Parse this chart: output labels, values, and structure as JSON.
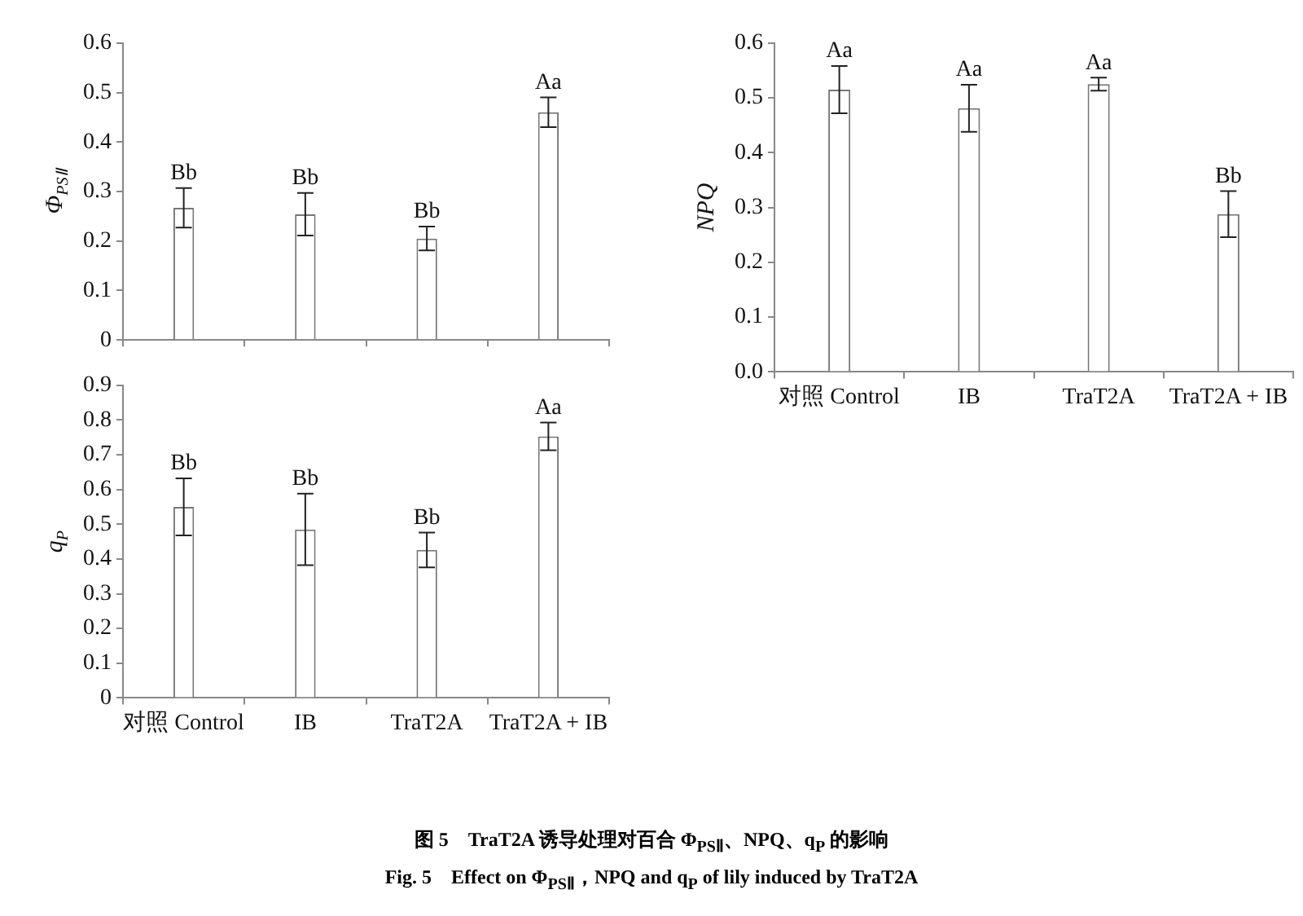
{
  "chart_data": [
    {
      "type": "bar",
      "ylabel": "Φ$_{PSⅡ}$",
      "categories": [
        "对照 Control",
        "IB",
        "TraT2A",
        "TraT2A + IB"
      ],
      "values": [
        0.267,
        0.254,
        0.205,
        0.46
      ],
      "errors": [
        0.04,
        0.043,
        0.024,
        0.03
      ],
      "color": "#ffffff",
      "ylim": [
        0,
        0.6
      ],
      "yticks": [
        0,
        0.1,
        0.2,
        0.3,
        0.4,
        0.5,
        0.6
      ],
      "tick_labels": "y",
      "grid": false,
      "legend": false,
      "annotations": [
        {
          "text": "Bb",
          "x": "对照 Control",
          "y": 0.307
        },
        {
          "text": "Bb",
          "x": "IB",
          "y": 0.297
        },
        {
          "text": "Bb",
          "x": "TraT2A",
          "y": 0.229
        },
        {
          "text": "Aa",
          "x": "TraT2A + IB",
          "y": 0.49
        }
      ]
    },
    {
      "type": "bar",
      "ylabel": "NPQ",
      "categories": [
        "对照 Control",
        "IB",
        "TraT2A",
        "TraT2A + IB"
      ],
      "values": [
        0.515,
        0.481,
        0.525,
        0.288
      ],
      "errors": [
        0.043,
        0.043,
        0.012,
        0.042
      ],
      "color": "#ffffff",
      "ylim": [
        0,
        0.6
      ],
      "yticks": [
        {
          "value": 0,
          "label": "0.0"
        },
        0.1,
        0.2,
        0.3,
        0.4,
        0.5,
        0.6
      ],
      "grid": false,
      "legend": false,
      "annotations": [
        {
          "text": "Aa",
          "x": "对照 Control",
          "y": 0.558
        },
        {
          "text": "Aa",
          "x": "IB",
          "y": 0.524
        },
        {
          "text": "Aa",
          "x": "TraT2A",
          "y": 0.537
        },
        {
          "text": "Bb",
          "x": "TraT2A + IB",
          "y": 0.33
        }
      ]
    },
    {
      "type": "bar",
      "ylabel": "q$_{P}$",
      "categories": [
        "对照 Control",
        "IB",
        "TraT2A",
        "TraT2A + IB"
      ],
      "values": [
        0.55,
        0.485,
        0.426,
        0.753
      ],
      "errors": [
        0.082,
        0.103,
        0.05,
        0.04
      ],
      "color": "#ffffff",
      "ylim": [
        0,
        0.9
      ],
      "yticks": [
        0,
        0.1,
        0.2,
        0.3,
        0.4,
        0.5,
        0.6,
        0.7,
        0.8,
        0.9
      ],
      "grid": false,
      "legend": false,
      "annotations": [
        {
          "text": "Bb",
          "x": "对照 Control",
          "y": 0.632
        },
        {
          "text": "Bb",
          "x": "IB",
          "y": 0.588
        },
        {
          "text": "Bb",
          "x": "TraT2A",
          "y": 0.476
        },
        {
          "text": "Aa",
          "x": "TraT2A + IB",
          "y": 0.793
        },
        "图 5　TraT2A 诱导处理对百合 Φ$_{PSⅡ}$、NPQ、q$_{P}$ 的影响",
        "Fig. 5　Effect on Φ$_{PSⅡ}$，NPQ and q$_{P}$ of lily induced by TraT2A"
      ]
    }
  ]
}
